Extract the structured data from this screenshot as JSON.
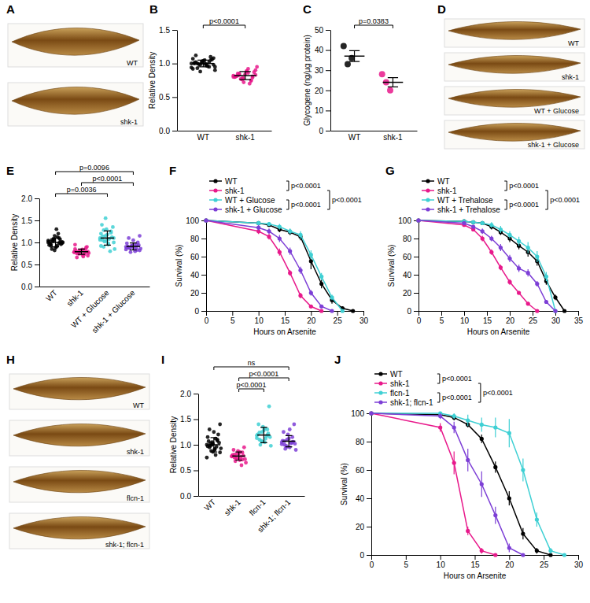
{
  "chart_data": [
    {
      "panel": "B",
      "type": "strip",
      "marker": "circle",
      "grid": false,
      "ylabel": "Relative Density",
      "ylim": [
        0,
        1.5
      ],
      "yticks": [
        {
          "value": 0,
          "label": "0.0"
        },
        {
          "value": 0.5,
          "label": "0.5"
        },
        {
          "value": 1,
          "label": "1.0"
        },
        {
          "value": 1.5,
          "label": "1.5"
        }
      ],
      "categories": [
        "WT",
        "shk-1"
      ],
      "colors": [
        "#000000",
        "#e8198b"
      ],
      "values": [
        [
          1.0,
          1.02,
          0.98,
          1.05,
          0.95,
          1.08,
          0.92,
          1.0,
          1.03,
          0.97,
          1.1,
          0.9,
          1.01,
          0.99,
          1.04,
          0.96,
          1.06,
          0.94,
          1.12,
          0.88,
          1.0,
          1.02,
          0.98,
          1.07,
          0.93,
          1.01,
          0.99,
          1.05,
          0.95,
          1.0
        ],
        [
          0.82,
          0.85,
          0.78,
          0.88,
          0.75,
          0.9,
          0.8,
          0.83,
          0.72,
          0.86,
          0.79,
          0.95,
          0.81,
          0.77,
          0.84,
          0.7,
          0.87,
          0.8,
          0.82,
          0.76,
          0.89,
          0.74,
          0.83,
          0.8,
          0.85,
          0.78,
          0.92,
          0.81
        ]
      ],
      "means": [
        1.0,
        0.82
      ],
      "errors": [
        0.05,
        0.06
      ],
      "annotations": [
        {
          "text": "p<0.0001",
          "between": [
            "WT",
            "shk-1"
          ]
        }
      ]
    },
    {
      "panel": "C",
      "type": "strip",
      "marker": "circle",
      "grid": false,
      "ylabel": "Glycogene (ng/µg protein)",
      "ylim": [
        0,
        50
      ],
      "yticks": [
        0,
        10,
        20,
        30,
        40,
        50
      ],
      "categories": [
        "WT",
        "shk-1"
      ],
      "colors": [
        "#000000",
        "#e8198b"
      ],
      "values": [
        [
          42,
          33,
          36
        ],
        [
          28,
          24,
          20
        ]
      ],
      "means": [
        37,
        24
      ],
      "errors": [
        2.7,
        2.3
      ],
      "annotations": [
        {
          "text": "p=0.0383",
          "between": [
            "WT",
            "shk-1"
          ]
        }
      ]
    },
    {
      "panel": "E",
      "type": "strip",
      "marker": "circle",
      "grid": false,
      "ylabel": "Relative Density",
      "ylim": [
        0,
        2
      ],
      "yticks": [
        {
          "value": 0,
          "label": "0.0"
        },
        {
          "value": 0.5,
          "label": "0.5"
        },
        {
          "value": 1,
          "label": "1.0"
        },
        {
          "value": 1.5,
          "label": "1.5"
        },
        {
          "value": 2,
          "label": "2.0"
        }
      ],
      "categories": [
        "WT",
        "shk-1",
        "WT + Glucose",
        "shk-1 + Glucose"
      ],
      "colors": [
        "#000000",
        "#e8198b",
        "#3fd0d4",
        "#7d3fd6"
      ],
      "values": [
        [
          1.0,
          0.95,
          1.05,
          0.9,
          1.1,
          0.98,
          1.02,
          0.85,
          1.15,
          0.93,
          1.07,
          1.0,
          0.97,
          1.03,
          0.88,
          1.2,
          0.96,
          1.04,
          0.92,
          1.08,
          1.3,
          0.99,
          1.01,
          0.94,
          1.06,
          0.82,
          1.12,
          1.0
        ],
        [
          0.78,
          0.75,
          0.8,
          0.72,
          0.83,
          0.7,
          0.85,
          0.77,
          0.79,
          0.68,
          0.88,
          0.76,
          0.81,
          0.74,
          0.82,
          0.73,
          0.9,
          0.78,
          0.66,
          0.8,
          0.84,
          0.76,
          0.79,
          0.95
        ],
        [
          1.1,
          1.05,
          1.15,
          0.95,
          1.25,
          1.0,
          1.2,
          0.9,
          1.3,
          1.08,
          1.12,
          0.85,
          1.4,
          1.02,
          1.18,
          0.8,
          1.35,
          1.06,
          1.14,
          1.55,
          0.98,
          1.22,
          1.1,
          0.92,
          1.28,
          1.04
        ],
        [
          0.9,
          0.88,
          0.92,
          0.85,
          0.95,
          0.82,
          0.98,
          0.87,
          0.93,
          0.8,
          1.0,
          0.86,
          0.91,
          0.78,
          1.05,
          0.89,
          0.94,
          0.84,
          1.1,
          0.9,
          0.96,
          0.83,
          1.15,
          0.88
        ]
      ],
      "means": [
        1.0,
        0.79,
        1.1,
        0.91
      ],
      "errors": [
        0.1,
        0.06,
        0.16,
        0.08
      ],
      "annotations": [
        {
          "text": "p=0.0096",
          "between": [
            "WT",
            "shk-1 + Glucose"
          ]
        },
        {
          "text": "p<0.0001",
          "between": [
            "shk-1",
            "shk-1 + Glucose"
          ]
        },
        {
          "text": "p=0.0036",
          "between": [
            "WT",
            "WT + Glucose"
          ]
        }
      ]
    },
    {
      "panel": "F",
      "type": "line",
      "marker": "circle",
      "line_style": "solid",
      "grid": false,
      "legend": "top",
      "xlabel": "Hours on Arsenite",
      "ylabel": "Survival (%)",
      "xlim": [
        0,
        30
      ],
      "xticks": [
        0,
        5,
        10,
        15,
        20,
        25,
        30
      ],
      "ylim": [
        0,
        100
      ],
      "yticks": [
        0,
        20,
        40,
        60,
        80,
        100
      ],
      "series": [
        {
          "name": "WT",
          "color": "#000000",
          "x": [
            0,
            10,
            12,
            14,
            16,
            18,
            20,
            22,
            24,
            26,
            28
          ],
          "values": [
            100,
            97,
            95,
            90,
            87,
            82,
            55,
            30,
            12,
            3,
            0
          ],
          "errors": [
            0,
            2,
            2,
            3,
            3,
            4,
            9,
            5,
            4,
            2,
            0
          ]
        },
        {
          "name": "shk-1",
          "color": "#e8198b",
          "x": [
            0,
            10,
            12,
            14,
            16,
            18,
            20,
            22
          ],
          "values": [
            100,
            88,
            82,
            65,
            42,
            17,
            5,
            0
          ],
          "errors": [
            0,
            3,
            3,
            4,
            3,
            3,
            2,
            0
          ]
        },
        {
          "name": "WT + Glucose",
          "color": "#3fd0d4",
          "x": [
            0,
            10,
            12,
            14,
            16,
            18,
            20,
            22,
            24,
            26
          ],
          "values": [
            100,
            97,
            96,
            93,
            88,
            84,
            62,
            38,
            15,
            0
          ],
          "errors": [
            0,
            2,
            2,
            3,
            3,
            4,
            5,
            4,
            3,
            0
          ]
        },
        {
          "name": "shk-1 + Glucose",
          "color": "#7d3fd6",
          "x": [
            0,
            10,
            12,
            14,
            16,
            18,
            20,
            22,
            24
          ],
          "values": [
            100,
            92,
            88,
            80,
            66,
            45,
            20,
            5,
            0
          ],
          "errors": [
            0,
            3,
            3,
            4,
            4,
            4,
            3,
            2,
            0
          ]
        }
      ],
      "annotations": [
        {
          "text": "p<0.0001",
          "between": [
            "WT",
            "shk-1"
          ]
        },
        {
          "text": "p<0.0001",
          "between": [
            "WT + Glucose",
            "shk-1 + Glucose"
          ]
        },
        {
          "text": "p<0.0001",
          "between": [
            "shk-1",
            "shk-1 + Glucose"
          ]
        }
      ]
    },
    {
      "panel": "G",
      "type": "line",
      "marker": "circle",
      "line_style": "solid",
      "grid": false,
      "legend": "top",
      "xlabel": "Hours on Arsenite",
      "ylabel": "Survival (%)",
      "xlim": [
        0,
        35
      ],
      "xticks": [
        0,
        5,
        10,
        15,
        20,
        25,
        30,
        35
      ],
      "ylim": [
        0,
        100
      ],
      "yticks": [
        0,
        20,
        40,
        60,
        80,
        100
      ],
      "series": [
        {
          "name": "WT",
          "color": "#000000",
          "x": [
            0,
            10,
            12,
            14,
            16,
            18,
            20,
            22,
            24,
            26,
            28,
            30,
            32
          ],
          "values": [
            100,
            99,
            98,
            97,
            93,
            87,
            80,
            72,
            65,
            55,
            33,
            15,
            0
          ],
          "errors": [
            0,
            1,
            2,
            2,
            3,
            3,
            4,
            4,
            5,
            5,
            4,
            3,
            0
          ]
        },
        {
          "name": "shk-1",
          "color": "#e8198b",
          "x": [
            0,
            10,
            12,
            14,
            16,
            18,
            20,
            22,
            24,
            26
          ],
          "values": [
            100,
            95,
            90,
            80,
            65,
            48,
            32,
            20,
            8,
            0
          ],
          "errors": [
            0,
            2,
            2,
            3,
            3,
            3,
            3,
            2,
            2,
            0
          ]
        },
        {
          "name": "WT + Trehalose",
          "color": "#3fd0d4",
          "x": [
            0,
            10,
            12,
            14,
            16,
            18,
            20,
            22,
            24,
            26,
            28,
            30
          ],
          "values": [
            100,
            99,
            98,
            97,
            95,
            90,
            84,
            77,
            70,
            60,
            38,
            0
          ],
          "errors": [
            0,
            1,
            2,
            2,
            3,
            4,
            4,
            5,
            6,
            6,
            5,
            0
          ]
        },
        {
          "name": "shk-1 + Trehalose",
          "color": "#7d3fd6",
          "x": [
            0,
            10,
            12,
            14,
            16,
            18,
            20,
            22,
            24,
            26,
            28,
            30
          ],
          "values": [
            100,
            97,
            93,
            88,
            80,
            70,
            58,
            47,
            42,
            30,
            10,
            0
          ],
          "errors": [
            0,
            2,
            2,
            3,
            3,
            4,
            4,
            4,
            4,
            3,
            2,
            0
          ]
        }
      ],
      "annotations": [
        {
          "text": "p<0.0001",
          "between": [
            "WT",
            "shk-1"
          ]
        },
        {
          "text": "p<0.0001",
          "between": [
            "WT + Trehalose",
            "shk-1 + Trehalose"
          ]
        },
        {
          "text": "p<0.0001",
          "between": [
            "shk-1",
            "shk-1 + Trehalose"
          ]
        }
      ]
    },
    {
      "panel": "I",
      "type": "strip",
      "marker": "circle",
      "grid": false,
      "ylabel": "Relative Density",
      "ylim": [
        0,
        2
      ],
      "yticks": [
        {
          "value": 0,
          "label": "0.0"
        },
        {
          "value": 0.5,
          "label": "0.5"
        },
        {
          "value": 1,
          "label": "1.0"
        },
        {
          "value": 1.5,
          "label": "1.5"
        },
        {
          "value": 2,
          "label": "2.0"
        }
      ],
      "categories": [
        "WT",
        "shk-1",
        "flcn-1",
        "shk-1; flcn-1"
      ],
      "colors": [
        "#000000",
        "#e8198b",
        "#3fd0d4",
        "#7d3fd6"
      ],
      "values": [
        [
          1.0,
          0.95,
          1.05,
          0.9,
          1.1,
          0.85,
          1.15,
          0.98,
          1.02,
          0.8,
          1.2,
          0.93,
          1.07,
          0.88,
          1.25,
          0.96,
          1.04,
          0.75,
          1.3,
          1.0,
          0.92,
          1.08,
          1.4,
          0.97,
          1.03,
          0.86,
          1.12
        ],
        [
          0.78,
          0.75,
          0.82,
          0.7,
          0.85,
          0.72,
          0.8,
          0.68,
          0.88,
          0.76,
          0.79,
          0.65,
          0.9,
          0.74,
          0.83,
          0.6,
          0.95,
          0.77,
          0.81,
          0.73,
          0.86,
          0.71
        ],
        [
          1.18,
          1.1,
          1.25,
          1.05,
          1.3,
          1.15,
          1.2,
          1.0,
          1.35,
          1.12,
          1.22,
          0.98,
          1.4,
          1.08,
          1.28,
          1.17,
          1.75,
          1.13,
          1.24,
          1.06,
          1.32,
          1.19
        ],
        [
          1.05,
          1.0,
          1.1,
          0.95,
          1.15,
          1.02,
          1.08,
          0.92,
          1.2,
          1.04,
          1.06,
          0.9,
          1.25,
          0.98,
          1.12,
          1.03,
          1.4,
          1.01,
          1.07,
          0.96,
          1.3,
          1.05
        ]
      ],
      "means": [
        1.0,
        0.78,
        1.19,
        1.07
      ],
      "errors": [
        0.14,
        0.08,
        0.15,
        0.11
      ],
      "annotations": [
        {
          "text": "ns",
          "between": [
            "WT",
            "shk-1; flcn-1"
          ]
        },
        {
          "text": "p<0.0001",
          "between": [
            "shk-1",
            "shk-1; flcn-1"
          ]
        },
        {
          "text": "p<0.0001",
          "between": [
            "shk-1",
            "flcn-1"
          ]
        }
      ]
    },
    {
      "panel": "J",
      "type": "line",
      "marker": "circle",
      "line_style": "solid",
      "grid": false,
      "legend": "top",
      "xlabel": "Hours on Arsenite",
      "ylabel": "Survival (%)",
      "xlim": [
        0,
        30
      ],
      "xticks": [
        0,
        5,
        10,
        15,
        20,
        25,
        30
      ],
      "ylim": [
        0,
        100
      ],
      "yticks": [
        0,
        20,
        40,
        60,
        80,
        100
      ],
      "series": [
        {
          "name": "WT",
          "color": "#000000",
          "x": [
            0,
            10,
            12,
            14,
            16,
            18,
            20,
            22,
            24,
            26
          ],
          "values": [
            100,
            99,
            97,
            92,
            82,
            62,
            40,
            15,
            3,
            0
          ],
          "errors": [
            0,
            1,
            2,
            2,
            3,
            4,
            5,
            4,
            2,
            0
          ]
        },
        {
          "name": "shk-1",
          "color": "#e8198b",
          "x": [
            0,
            10,
            12,
            14,
            16,
            18
          ],
          "values": [
            100,
            90,
            65,
            17,
            3,
            0
          ],
          "errors": [
            0,
            3,
            8,
            3,
            2,
            0
          ]
        },
        {
          "name": "flcn-1",
          "color": "#3fd0d4",
          "x": [
            0,
            10,
            12,
            14,
            16,
            18,
            20,
            22,
            24,
            26,
            28
          ],
          "values": [
            100,
            100,
            98,
            95,
            92,
            90,
            86,
            60,
            25,
            3,
            0
          ],
          "errors": [
            0,
            0,
            2,
            4,
            5,
            7,
            10,
            8,
            5,
            2,
            0
          ]
        },
        {
          "name": "shk-1; flcn-1",
          "color": "#7d3fd6",
          "x": [
            0,
            10,
            12,
            14,
            16,
            18,
            20,
            22
          ],
          "values": [
            100,
            98,
            90,
            67,
            50,
            28,
            5,
            0
          ],
          "errors": [
            0,
            2,
            4,
            8,
            9,
            6,
            3,
            0
          ]
        }
      ],
      "annotations": [
        {
          "text": "p<0.0001",
          "between": [
            "WT",
            "shk-1"
          ]
        },
        {
          "text": "p<0.0001",
          "between": [
            "flcn-1",
            "shk-1; flcn-1"
          ]
        },
        {
          "text": "p<0.0001",
          "between": [
            "shk-1",
            "shk-1; flcn-1"
          ]
        }
      ]
    }
  ],
  "images": [
    {
      "panel": "A",
      "labels": [
        "WT",
        "shk-1"
      ]
    },
    {
      "panel": "D",
      "labels": [
        "WT",
        "shk-1",
        "WT + Glucose",
        "shk-1 + Glucose"
      ]
    },
    {
      "panel": "H",
      "labels": [
        "WT",
        "shk-1",
        "flcn-1",
        "shk-1; flcn-1"
      ]
    }
  ]
}
